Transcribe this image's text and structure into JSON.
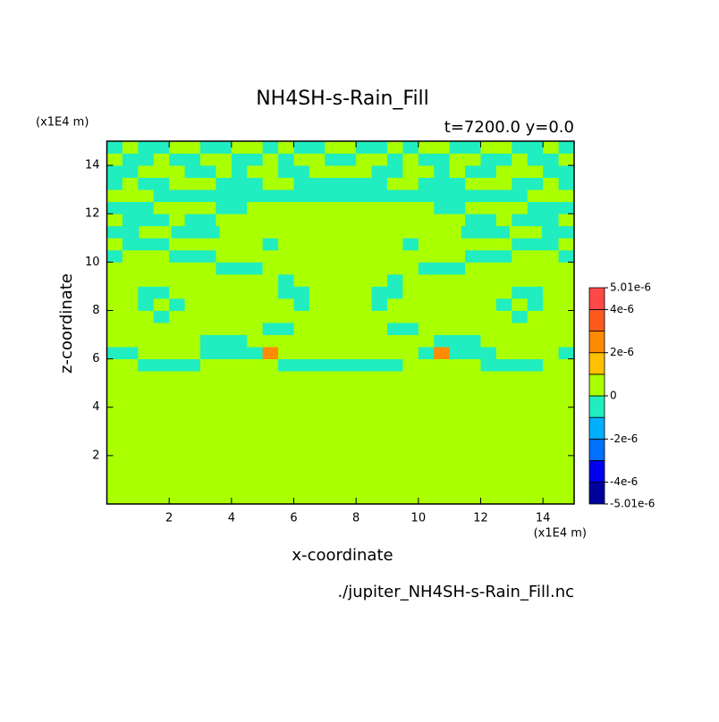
{
  "chart_data": {
    "type": "contour",
    "title": "NH4SH-s-Rain_Fill",
    "subtitle": "t=7200.0 y=0.0",
    "y_unit": "(x1E4 m)",
    "x_unit": "(x1E4 m)",
    "x_label": "x-coordinate",
    "y_label": "z-coordinate",
    "source": "./jupiter_NH4SH-s-Rain_Fill.nc",
    "xlim": [
      0,
      15
    ],
    "ylim": [
      0,
      15
    ],
    "xticks": [
      2,
      4,
      6,
      8,
      10,
      12,
      14
    ],
    "yticks": [
      2,
      4,
      6,
      8,
      10,
      12,
      14
    ],
    "levels": [
      -5.01e-06,
      -4e-06,
      -3e-06,
      -2e-06,
      -1e-06,
      0,
      1e-06,
      2e-06,
      3e-06,
      4e-06,
      5.01e-06
    ],
    "colors": [
      "#00009c",
      "#0000f0",
      "#0070ff",
      "#00b0ff",
      "#20eec0",
      "#aaff00",
      "#ffc000",
      "#ff8c00",
      "#ff5a1e",
      "#ff4848"
    ],
    "colorbar_ticks": [
      {
        "value": 5.01e-06,
        "label": "5.01e-6"
      },
      {
        "value": 4e-06,
        "label": "4e-6"
      },
      {
        "value": 2e-06,
        "label": "2e-6"
      },
      0,
      {
        "value": -2e-06,
        "label": "-2e-6"
      },
      {
        "value": -4e-06,
        "label": "-4e-6"
      },
      {
        "value": -5.01e-06,
        "label": "-5.01e-6"
      }
    ],
    "z": [
      [
        5e-07,
        5e-07,
        5e-07,
        5e-07,
        5e-07,
        5e-07,
        5e-07,
        5e-07,
        5e-07,
        5e-07,
        5e-07,
        5e-07,
        5e-07,
        5e-07,
        5e-07,
        5e-07,
        5e-07,
        5e-07,
        5e-07,
        5e-07,
        5e-07,
        5e-07,
        5e-07,
        5e-07,
        5e-07,
        5e-07,
        5e-07,
        5e-07,
        5e-07,
        5e-07
      ],
      [
        5e-07,
        5e-07,
        5e-07,
        5e-07,
        5e-07,
        5e-07,
        5e-07,
        5e-07,
        5e-07,
        5e-07,
        5e-07,
        5e-07,
        5e-07,
        5e-07,
        5e-07,
        5e-07,
        5e-07,
        5e-07,
        5e-07,
        5e-07,
        5e-07,
        5e-07,
        5e-07,
        5e-07,
        5e-07,
        5e-07,
        5e-07,
        5e-07,
        5e-07,
        5e-07
      ],
      [
        5e-07,
        5e-07,
        5e-07,
        5e-07,
        5e-07,
        5e-07,
        5e-07,
        5e-07,
        5e-07,
        5e-07,
        5e-07,
        5e-07,
        5e-07,
        5e-07,
        5e-07,
        5e-07,
        5e-07,
        5e-07,
        5e-07,
        5e-07,
        5e-07,
        5e-07,
        5e-07,
        5e-07,
        5e-07,
        5e-07,
        5e-07,
        5e-07,
        5e-07,
        5e-07
      ],
      [
        5e-07,
        5e-07,
        5e-07,
        5e-07,
        5e-07,
        5e-07,
        5e-07,
        5e-07,
        5e-07,
        5e-07,
        5e-07,
        5e-07,
        5e-07,
        5e-07,
        5e-07,
        5e-07,
        5e-07,
        5e-07,
        5e-07,
        5e-07,
        5e-07,
        5e-07,
        5e-07,
        5e-07,
        5e-07,
        5e-07,
        5e-07,
        5e-07,
        5e-07,
        5e-07
      ],
      [
        5e-07,
        5e-07,
        5e-07,
        5e-07,
        5e-07,
        5e-07,
        5e-07,
        5e-07,
        5e-07,
        5e-07,
        5e-07,
        5e-07,
        5e-07,
        5e-07,
        5e-07,
        5e-07,
        5e-07,
        5e-07,
        5e-07,
        5e-07,
        5e-07,
        5e-07,
        5e-07,
        5e-07,
        5e-07,
        5e-07,
        5e-07,
        5e-07,
        5e-07,
        5e-07
      ],
      [
        5e-07,
        5e-07,
        5e-07,
        5e-07,
        5e-07,
        5e-07,
        5e-07,
        5e-07,
        5e-07,
        5e-07,
        5e-07,
        5e-07,
        5e-07,
        5e-07,
        5e-07,
        5e-07,
        5e-07,
        5e-07,
        5e-07,
        5e-07,
        5e-07,
        5e-07,
        5e-07,
        5e-07,
        5e-07,
        5e-07,
        5e-07,
        5e-07,
        5e-07,
        5e-07
      ],
      [
        5e-07,
        5e-07,
        5e-07,
        5e-07,
        5e-07,
        5e-07,
        5e-07,
        5e-07,
        5e-07,
        5e-07,
        5e-07,
        5e-07,
        5e-07,
        5e-07,
        5e-07,
        5e-07,
        5e-07,
        5e-07,
        5e-07,
        5e-07,
        5e-07,
        5e-07,
        5e-07,
        5e-07,
        5e-07,
        5e-07,
        5e-07,
        5e-07,
        5e-07,
        5e-07
      ],
      [
        5e-07,
        5e-07,
        5e-07,
        5e-07,
        5e-07,
        5e-07,
        5e-07,
        5e-07,
        5e-07,
        5e-07,
        5e-07,
        5e-07,
        5e-07,
        5e-07,
        5e-07,
        5e-07,
        5e-07,
        5e-07,
        5e-07,
        5e-07,
        5e-07,
        5e-07,
        5e-07,
        5e-07,
        5e-07,
        5e-07,
        5e-07,
        5e-07,
        5e-07,
        5e-07
      ],
      [
        5e-07,
        5e-07,
        5e-07,
        5e-07,
        5e-07,
        5e-07,
        5e-07,
        5e-07,
        5e-07,
        5e-07,
        5e-07,
        5e-07,
        5e-07,
        5e-07,
        5e-07,
        5e-07,
        5e-07,
        5e-07,
        5e-07,
        5e-07,
        5e-07,
        5e-07,
        5e-07,
        5e-07,
        5e-07,
        5e-07,
        5e-07,
        5e-07,
        5e-07,
        5e-07
      ],
      [
        5e-07,
        5e-07,
        5e-07,
        5e-07,
        5e-07,
        5e-07,
        5e-07,
        5e-07,
        5e-07,
        5e-07,
        5e-07,
        5e-07,
        5e-07,
        5e-07,
        5e-07,
        5e-07,
        5e-07,
        5e-07,
        5e-07,
        5e-07,
        5e-07,
        5e-07,
        5e-07,
        5e-07,
        5e-07,
        5e-07,
        5e-07,
        5e-07,
        5e-07,
        5e-07
      ],
      [
        5e-07,
        5e-07,
        5e-07,
        5e-07,
        5e-07,
        5e-07,
        5e-07,
        5e-07,
        5e-07,
        5e-07,
        5e-07,
        5e-07,
        5e-07,
        5e-07,
        5e-07,
        5e-07,
        5e-07,
        5e-07,
        5e-07,
        5e-07,
        5e-07,
        5e-07,
        5e-07,
        5e-07,
        5e-07,
        5e-07,
        5e-07,
        5e-07,
        5e-07,
        5e-07
      ],
      [
        5e-07,
        5e-07,
        -5e-07,
        -5e-07,
        -5e-07,
        -5e-07,
        5e-07,
        5e-07,
        5e-07,
        5e-07,
        5e-07,
        -5e-07,
        -5e-07,
        -5e-07,
        -5e-07,
        -5e-07,
        -5e-07,
        -5e-07,
        -5e-07,
        5e-07,
        5e-07,
        5e-07,
        5e-07,
        5e-07,
        -5e-07,
        -5e-07,
        -5e-07,
        -5e-07,
        5e-07,
        5e-07
      ],
      [
        -5e-07,
        -5e-07,
        5e-07,
        5e-07,
        5e-07,
        5e-07,
        -5e-07,
        -5e-07,
        -5e-07,
        -5e-07,
        2.5e-06,
        5e-07,
        5e-07,
        5e-07,
        5e-07,
        5e-07,
        5e-07,
        5e-07,
        5e-07,
        5e-07,
        -5e-07,
        2.5e-06,
        -5e-07,
        -5e-07,
        -5e-07,
        5e-07,
        5e-07,
        5e-07,
        5e-07,
        -5e-07
      ],
      [
        5e-07,
        5e-07,
        5e-07,
        5e-07,
        5e-07,
        5e-07,
        -5e-07,
        -5e-07,
        -5e-07,
        5e-07,
        5e-07,
        5e-07,
        5e-07,
        5e-07,
        5e-07,
        5e-07,
        5e-07,
        5e-07,
        5e-07,
        5e-07,
        5e-07,
        -5e-07,
        -5e-07,
        -5e-07,
        5e-07,
        5e-07,
        5e-07,
        5e-07,
        5e-07,
        5e-07
      ],
      [
        5e-07,
        5e-07,
        5e-07,
        5e-07,
        5e-07,
        5e-07,
        5e-07,
        5e-07,
        5e-07,
        5e-07,
        -5e-07,
        -5e-07,
        5e-07,
        5e-07,
        5e-07,
        5e-07,
        5e-07,
        5e-07,
        -5e-07,
        -5e-07,
        5e-07,
        5e-07,
        5e-07,
        5e-07,
        5e-07,
        5e-07,
        5e-07,
        5e-07,
        5e-07,
        5e-07
      ],
      [
        5e-07,
        5e-07,
        5e-07,
        -5e-07,
        5e-07,
        5e-07,
        5e-07,
        5e-07,
        5e-07,
        5e-07,
        5e-07,
        5e-07,
        5e-07,
        5e-07,
        5e-07,
        5e-07,
        5e-07,
        5e-07,
        5e-07,
        5e-07,
        5e-07,
        5e-07,
        5e-07,
        5e-07,
        5e-07,
        5e-07,
        -5e-07,
        5e-07,
        5e-07,
        5e-07
      ],
      [
        5e-07,
        5e-07,
        -5e-07,
        5e-07,
        -5e-07,
        5e-07,
        5e-07,
        5e-07,
        5e-07,
        5e-07,
        5e-07,
        5e-07,
        -5e-07,
        5e-07,
        5e-07,
        5e-07,
        5e-07,
        -5e-07,
        5e-07,
        5e-07,
        5e-07,
        5e-07,
        5e-07,
        5e-07,
        5e-07,
        -5e-07,
        5e-07,
        -5e-07,
        5e-07,
        5e-07
      ],
      [
        5e-07,
        5e-07,
        -5e-07,
        -5e-07,
        5e-07,
        5e-07,
        5e-07,
        5e-07,
        5e-07,
        5e-07,
        5e-07,
        -5e-07,
        -5e-07,
        5e-07,
        5e-07,
        5e-07,
        5e-07,
        -5e-07,
        -5e-07,
        5e-07,
        5e-07,
        5e-07,
        5e-07,
        5e-07,
        5e-07,
        5e-07,
        -5e-07,
        -5e-07,
        5e-07,
        5e-07
      ],
      [
        5e-07,
        5e-07,
        5e-07,
        5e-07,
        5e-07,
        5e-07,
        5e-07,
        5e-07,
        5e-07,
        5e-07,
        5e-07,
        -5e-07,
        5e-07,
        5e-07,
        5e-07,
        5e-07,
        5e-07,
        5e-07,
        -5e-07,
        5e-07,
        5e-07,
        5e-07,
        5e-07,
        5e-07,
        5e-07,
        5e-07,
        5e-07,
        5e-07,
        5e-07,
        5e-07
      ],
      [
        5e-07,
        5e-07,
        5e-07,
        5e-07,
        5e-07,
        5e-07,
        5e-07,
        -5e-07,
        -5e-07,
        -5e-07,
        5e-07,
        5e-07,
        5e-07,
        5e-07,
        5e-07,
        5e-07,
        5e-07,
        5e-07,
        5e-07,
        5e-07,
        -5e-07,
        -5e-07,
        -5e-07,
        5e-07,
        5e-07,
        5e-07,
        5e-07,
        5e-07,
        5e-07,
        5e-07
      ],
      [
        -5e-07,
        5e-07,
        5e-07,
        5e-07,
        -5e-07,
        -5e-07,
        -5e-07,
        5e-07,
        5e-07,
        5e-07,
        5e-07,
        5e-07,
        5e-07,
        5e-07,
        5e-07,
        5e-07,
        5e-07,
        5e-07,
        5e-07,
        5e-07,
        5e-07,
        5e-07,
        5e-07,
        -5e-07,
        -5e-07,
        -5e-07,
        5e-07,
        5e-07,
        5e-07,
        -5e-07
      ],
      [
        5e-07,
        -5e-07,
        -5e-07,
        -5e-07,
        5e-07,
        5e-07,
        5e-07,
        5e-07,
        5e-07,
        5e-07,
        -5e-07,
        5e-07,
        5e-07,
        5e-07,
        5e-07,
        5e-07,
        5e-07,
        5e-07,
        5e-07,
        -5e-07,
        5e-07,
        5e-07,
        5e-07,
        5e-07,
        5e-07,
        5e-07,
        -5e-07,
        -5e-07,
        -5e-07,
        5e-07
      ],
      [
        -5e-07,
        -5e-07,
        5e-07,
        5e-07,
        -5e-07,
        -5e-07,
        -5e-07,
        5e-07,
        5e-07,
        5e-07,
        5e-07,
        5e-07,
        5e-07,
        5e-07,
        5e-07,
        5e-07,
        5e-07,
        5e-07,
        5e-07,
        5e-07,
        5e-07,
        5e-07,
        -5e-07,
        -5e-07,
        -5e-07,
        5e-07,
        5e-07,
        -5e-07,
        -5e-07
      ],
      [
        5e-07,
        -5e-07,
        -5e-07,
        -5e-07,
        5e-07,
        -5e-07,
        -5e-07,
        5e-07,
        5e-07,
        5e-07,
        5e-07,
        5e-07,
        5e-07,
        5e-07,
        5e-07,
        5e-07,
        5e-07,
        5e-07,
        5e-07,
        5e-07,
        5e-07,
        5e-07,
        5e-07,
        -5e-07,
        -5e-07,
        5e-07,
        -5e-07,
        -5e-07,
        -5e-07,
        5e-07
      ],
      [
        -5e-07,
        -5e-07,
        -5e-07,
        5e-07,
        5e-07,
        5e-07,
        5e-07,
        -5e-07,
        -5e-07,
        5e-07,
        5e-07,
        5e-07,
        5e-07,
        5e-07,
        5e-07,
        5e-07,
        5e-07,
        5e-07,
        5e-07,
        5e-07,
        5e-07,
        -5e-07,
        -5e-07,
        5e-07,
        5e-07,
        5e-07,
        5e-07,
        -5e-07,
        -5e-07,
        -5e-07
      ],
      [
        5e-07,
        5e-07,
        5e-07,
        -5e-07,
        -5e-07,
        -5e-07,
        -5e-07,
        -5e-07,
        -5e-07,
        -5e-07,
        -5e-07,
        -5e-07,
        -5e-07,
        -5e-07,
        -5e-07,
        -5e-07,
        -5e-07,
        -5e-07,
        -5e-07,
        -5e-07,
        -5e-07,
        -5e-07,
        -5e-07,
        -5e-07,
        -5e-07,
        -5e-07,
        -5e-07,
        5e-07,
        5e-07,
        5e-07
      ],
      [
        -5e-07,
        5e-07,
        -5e-07,
        -5e-07,
        5e-07,
        5e-07,
        5e-07,
        -5e-07,
        -5e-07,
        -5e-07,
        5e-07,
        5e-07,
        -5e-07,
        -5e-07,
        -5e-07,
        -5e-07,
        -5e-07,
        -5e-07,
        5e-07,
        5e-07,
        -5e-07,
        -5e-07,
        -5e-07,
        5e-07,
        5e-07,
        5e-07,
        -5e-07,
        -5e-07,
        5e-07,
        -5e-07
      ],
      [
        -5e-07,
        -5e-07,
        5e-07,
        5e-07,
        5e-07,
        -5e-07,
        -5e-07,
        5e-07,
        -5e-07,
        5e-07,
        5e-07,
        -5e-07,
        -5e-07,
        5e-07,
        5e-07,
        5e-07,
        5e-07,
        -5e-07,
        -5e-07,
        5e-07,
        5e-07,
        -5e-07,
        5e-07,
        -5e-07,
        -5e-07,
        5e-07,
        5e-07,
        5e-07,
        -5e-07,
        -5e-07
      ],
      [
        5e-07,
        -5e-07,
        -5e-07,
        5e-07,
        -5e-07,
        -5e-07,
        5e-07,
        5e-07,
        -5e-07,
        -5e-07,
        5e-07,
        -5e-07,
        5e-07,
        5e-07,
        -5e-07,
        -5e-07,
        5e-07,
        5e-07,
        -5e-07,
        5e-07,
        -5e-07,
        -5e-07,
        5e-07,
        5e-07,
        -5e-07,
        -5e-07,
        5e-07,
        -5e-07,
        -5e-07,
        5e-07
      ],
      [
        -5e-07,
        5e-07,
        -5e-07,
        -5e-07,
        5e-07,
        5e-07,
        -5e-07,
        -5e-07,
        5e-07,
        5e-07,
        -5e-07,
        5e-07,
        -5e-07,
        -5e-07,
        5e-07,
        5e-07,
        -5e-07,
        -5e-07,
        5e-07,
        -5e-07,
        5e-07,
        5e-07,
        -5e-07,
        -5e-07,
        5e-07,
        5e-07,
        -5e-07,
        -5e-07,
        5e-07,
        -5e-07
      ]
    ]
  }
}
